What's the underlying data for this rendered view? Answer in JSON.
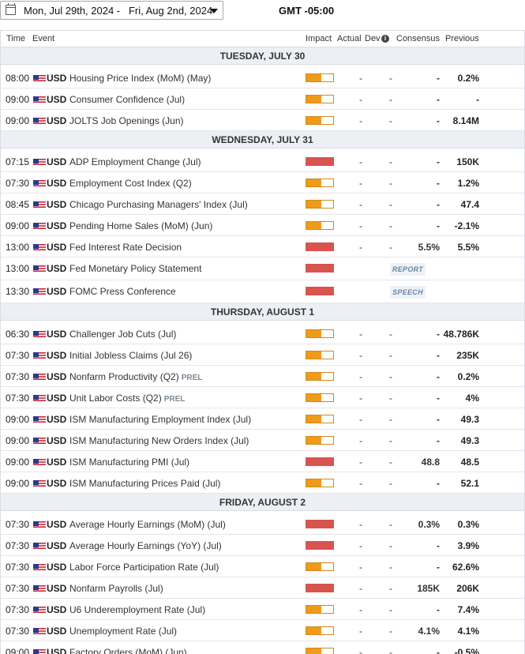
{
  "header": {
    "date_range": "Mon, Jul 29th, 2024 -   Fri, Aug 2nd, 2024",
    "timezone": "GMT -05:00"
  },
  "columns": {
    "time": "Time",
    "event": "Event",
    "impact": "Impact",
    "actual": "Actual",
    "dev": "Dev",
    "consensus": "Consensus",
    "previous": "Previous"
  },
  "colors": {
    "impact_medium": "#f09a1a",
    "impact_high": "#d9534f",
    "day_header_bg": "#eceff3"
  },
  "days": [
    {
      "label": "TUESDAY, JULY 30",
      "events": [
        {
          "time": "08:00",
          "currency": "USD",
          "event": "Housing Price Index (MoM) (May)",
          "prel": "",
          "impact": "medium",
          "actual": "-",
          "dev": "-",
          "consensus": "-",
          "previous": "0.2%",
          "tag": ""
        },
        {
          "time": "09:00",
          "currency": "USD",
          "event": "Consumer Confidence (Jul)",
          "prel": "",
          "impact": "medium",
          "actual": "-",
          "dev": "-",
          "consensus": "-",
          "previous": "-",
          "tag": ""
        },
        {
          "time": "09:00",
          "currency": "USD",
          "event": "JOLTS Job Openings (Jun)",
          "prel": "",
          "impact": "medium",
          "actual": "-",
          "dev": "-",
          "consensus": "-",
          "previous": "8.14M",
          "tag": ""
        }
      ]
    },
    {
      "label": "WEDNESDAY, JULY 31",
      "events": [
        {
          "time": "07:15",
          "currency": "USD",
          "event": "ADP Employment Change (Jul)",
          "prel": "",
          "impact": "high",
          "actual": "-",
          "dev": "-",
          "consensus": "-",
          "previous": "150K",
          "tag": ""
        },
        {
          "time": "07:30",
          "currency": "USD",
          "event": "Employment Cost Index (Q2)",
          "prel": "",
          "impact": "medium",
          "actual": "-",
          "dev": "-",
          "consensus": "-",
          "previous": "1.2%",
          "tag": ""
        },
        {
          "time": "08:45",
          "currency": "USD",
          "event": "Chicago Purchasing Managers' Index (Jul)",
          "prel": "",
          "impact": "medium",
          "actual": "-",
          "dev": "-",
          "consensus": "-",
          "previous": "47.4",
          "tag": ""
        },
        {
          "time": "09:00",
          "currency": "USD",
          "event": "Pending Home Sales (MoM) (Jun)",
          "prel": "",
          "impact": "medium",
          "actual": "-",
          "dev": "-",
          "consensus": "-",
          "previous": "-2.1%",
          "tag": ""
        },
        {
          "time": "13:00",
          "currency": "USD",
          "event": "Fed Interest Rate Decision",
          "prel": "",
          "impact": "high",
          "actual": "-",
          "dev": "-",
          "consensus": "5.5%",
          "previous": "5.5%",
          "tag": ""
        },
        {
          "time": "13:00",
          "currency": "USD",
          "event": "Fed Monetary Policy Statement",
          "prel": "",
          "impact": "high",
          "actual": "",
          "dev": "",
          "consensus": "",
          "previous": "",
          "tag": "REPORT"
        },
        {
          "time": "13:30",
          "currency": "USD",
          "event": "FOMC Press Conference",
          "prel": "",
          "impact": "high",
          "actual": "",
          "dev": "",
          "consensus": "",
          "previous": "",
          "tag": "SPEECH"
        }
      ]
    },
    {
      "label": "THURSDAY, AUGUST 1",
      "events": [
        {
          "time": "06:30",
          "currency": "USD",
          "event": "Challenger Job Cuts (Jul)",
          "prel": "",
          "impact": "medium",
          "actual": "-",
          "dev": "-",
          "consensus": "-",
          "previous": "48.786K",
          "tag": ""
        },
        {
          "time": "07:30",
          "currency": "USD",
          "event": "Initial Jobless Claims (Jul 26)",
          "prel": "",
          "impact": "medium",
          "actual": "-",
          "dev": "-",
          "consensus": "-",
          "previous": "235K",
          "tag": ""
        },
        {
          "time": "07:30",
          "currency": "USD",
          "event": "Nonfarm Productivity (Q2)",
          "prel": "PREL",
          "impact": "medium",
          "actual": "-",
          "dev": "-",
          "consensus": "-",
          "previous": "0.2%",
          "tag": ""
        },
        {
          "time": "07:30",
          "currency": "USD",
          "event": "Unit Labor Costs (Q2)",
          "prel": "PREL",
          "impact": "medium",
          "actual": "-",
          "dev": "-",
          "consensus": "-",
          "previous": "4%",
          "tag": ""
        },
        {
          "time": "09:00",
          "currency": "USD",
          "event": "ISM Manufacturing Employment Index (Jul)",
          "prel": "",
          "impact": "medium",
          "actual": "-",
          "dev": "-",
          "consensus": "-",
          "previous": "49.3",
          "tag": ""
        },
        {
          "time": "09:00",
          "currency": "USD",
          "event": "ISM Manufacturing New Orders Index (Jul)",
          "prel": "",
          "impact": "medium",
          "actual": "-",
          "dev": "-",
          "consensus": "-",
          "previous": "49.3",
          "tag": ""
        },
        {
          "time": "09:00",
          "currency": "USD",
          "event": "ISM Manufacturing PMI (Jul)",
          "prel": "",
          "impact": "high",
          "actual": "-",
          "dev": "-",
          "consensus": "48.8",
          "previous": "48.5",
          "tag": ""
        },
        {
          "time": "09:00",
          "currency": "USD",
          "event": "ISM Manufacturing Prices Paid (Jul)",
          "prel": "",
          "impact": "medium",
          "actual": "-",
          "dev": "-",
          "consensus": "-",
          "previous": "52.1",
          "tag": ""
        }
      ]
    },
    {
      "label": "FRIDAY, AUGUST 2",
      "events": [
        {
          "time": "07:30",
          "currency": "USD",
          "event": "Average Hourly Earnings (MoM) (Jul)",
          "prel": "",
          "impact": "high",
          "actual": "-",
          "dev": "-",
          "consensus": "0.3%",
          "previous": "0.3%",
          "tag": ""
        },
        {
          "time": "07:30",
          "currency": "USD",
          "event": "Average Hourly Earnings (YoY) (Jul)",
          "prel": "",
          "impact": "high",
          "actual": "-",
          "dev": "-",
          "consensus": "-",
          "previous": "3.9%",
          "tag": ""
        },
        {
          "time": "07:30",
          "currency": "USD",
          "event": "Labor Force Participation Rate (Jul)",
          "prel": "",
          "impact": "medium",
          "actual": "-",
          "dev": "-",
          "consensus": "-",
          "previous": "62.6%",
          "tag": ""
        },
        {
          "time": "07:30",
          "currency": "USD",
          "event": "Nonfarm Payrolls (Jul)",
          "prel": "",
          "impact": "high",
          "actual": "-",
          "dev": "-",
          "consensus": "185K",
          "previous": "206K",
          "tag": ""
        },
        {
          "time": "07:30",
          "currency": "USD",
          "event": "U6 Underemployment Rate (Jul)",
          "prel": "",
          "impact": "medium",
          "actual": "-",
          "dev": "-",
          "consensus": "-",
          "previous": "7.4%",
          "tag": ""
        },
        {
          "time": "07:30",
          "currency": "USD",
          "event": "Unemployment Rate (Jul)",
          "prel": "",
          "impact": "medium",
          "actual": "-",
          "dev": "-",
          "consensus": "4.1%",
          "previous": "4.1%",
          "tag": ""
        },
        {
          "time": "09:00",
          "currency": "USD",
          "event": "Factory Orders (MoM) (Jun)",
          "prel": "",
          "impact": "medium",
          "actual": "-",
          "dev": "-",
          "consensus": "-",
          "previous": "-0.5%",
          "tag": ""
        }
      ]
    }
  ]
}
